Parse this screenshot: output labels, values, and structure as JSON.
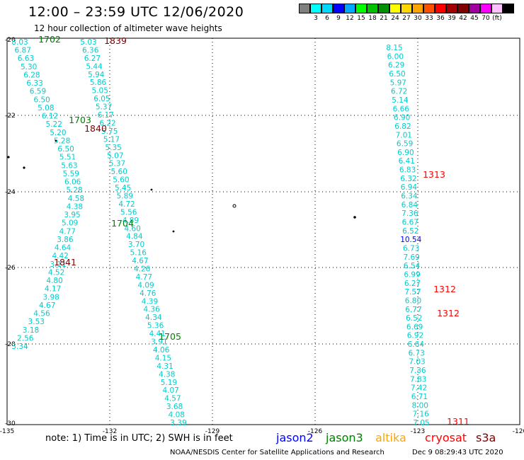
{
  "header": {
    "title": "12:00 – 23:59 UTC 12/06/2020",
    "subtitle": "12 hour collection of altimeter wave heights"
  },
  "legend": {
    "colors": [
      "#808080",
      "#00ffff",
      "#00d7ff",
      "#0000ff",
      "#00a8ff",
      "#00ff00",
      "#00c000",
      "#009000",
      "#ffff00",
      "#ffd700",
      "#ffa500",
      "#ff5000",
      "#ff0000",
      "#a00000",
      "#800000",
      "#a000a0",
      "#ff00ff",
      "#ffc0ff",
      "#000000"
    ],
    "labels": [
      "3",
      "6",
      "9",
      "12",
      "15",
      "18",
      "21",
      "24",
      "27",
      "30",
      "33",
      "36",
      "39",
      "42",
      "45",
      "70",
      "(ft)"
    ]
  },
  "axes": {
    "lon_ticks": [
      "-135",
      "-132",
      "-129",
      "-126",
      "-123",
      "-120"
    ],
    "lat_ticks": [
      "-20",
      "-22",
      "-24",
      "-26",
      "-28",
      "-30"
    ]
  },
  "passes": [
    {
      "label": "1702",
      "color": "#008000"
    },
    {
      "label": "1839",
      "color": "#800000"
    },
    {
      "label": "1703",
      "color": "#008000"
    },
    {
      "label": "1840",
      "color": "#800000"
    },
    {
      "label": "1704",
      "color": "#008000"
    },
    {
      "label": "1841",
      "color": "#800000"
    },
    {
      "label": "1705",
      "color": "#008000"
    },
    {
      "label": "1313",
      "color": "#ff0000"
    },
    {
      "label": "1312",
      "color": "#ff0000"
    },
    {
      "label": "1312",
      "color": "#ff0000"
    },
    {
      "label": "1311",
      "color": "#ff0000"
    }
  ],
  "tracks": [
    {
      "name": "track-a",
      "color": "#00cccc",
      "values": [
        "8.03",
        "6.87",
        "6.63",
        "5.30",
        "6.28",
        "6.33",
        "6.59",
        "6.50",
        "5.08",
        "6.12",
        "5.22",
        "5.20",
        "5.28",
        "6.50",
        "5.51",
        "5.63",
        "5.59",
        "6.06",
        "5.28",
        "4.58",
        "4.38",
        "3.95",
        "5.09",
        "4.77",
        "3.86",
        "4.64",
        "4.42",
        "3.11",
        "4.52",
        "4.80",
        "4.17",
        "3.98",
        "4.67",
        "4.56",
        "3.53",
        "3.18",
        "2.56",
        "3.34"
      ]
    },
    {
      "name": "track-b",
      "color": "#00cccc",
      "values": [
        "5.03",
        "6.36",
        "6.27",
        "5.44",
        "5.94",
        "5.86",
        "5.05",
        "6.05",
        "5.37",
        "6.17",
        "6.22",
        "5.75",
        "5.17",
        "5.35",
        "5.07",
        "5.37",
        "5.60",
        "5.60",
        "5.45",
        "5.89",
        "4.72",
        "5.56",
        "4.89",
        "4.60",
        "4.84",
        "3.70",
        "5.16",
        "4.67",
        "4.26",
        "4.77",
        "4.09",
        "4.76",
        "4.39",
        "4.36",
        "4.34",
        "5.36",
        "4.41",
        "3.91",
        "4.06",
        "4.15",
        "4.31",
        "4.38",
        "5.19",
        "4.07",
        "4.57",
        "3.68",
        "4.08",
        "3.39"
      ]
    },
    {
      "name": "track-c",
      "color": "#00cccc",
      "values": [
        "8.15",
        "6.00",
        "6.29",
        "6.50",
        "5.97",
        "6.72",
        "5.14",
        "6.66",
        "6.90",
        "6.82",
        "7.01",
        "6.59",
        "6.90",
        "6.41",
        "6.83",
        "6.32",
        "6.94",
        "6.34",
        "6.84",
        "7.36",
        "6.67",
        "6.52",
        "10.54",
        "6.73",
        "7.69",
        "6.54",
        "6.99",
        "6.27",
        "7.57",
        "6.80",
        "6.77",
        "6.52",
        "6.69",
        "6.92",
        "6.64",
        "6.73",
        "7.03",
        "7.36",
        "7.83",
        "7.42",
        "6.71",
        "8.00",
        "7.16",
        "7.05"
      ]
    }
  ],
  "footer": {
    "note": "note:  1) Time is in UTC;  2) SWH is in feet",
    "sat1": "jason2",
    "sat1_color": "#0000ff",
    "sat2": "jason3",
    "sat2_color": "#008000",
    "sat3": "altika",
    "sat3_color": "#ffa500",
    "sat4": "cryosat",
    "sat4_color": "#ff0000",
    "sat5": "s3a",
    "sat5_color": "#800000",
    "credit": "NOAA/NESDIS Center for Satellite Applications and Research",
    "stamp": "Dec  9 08:29:43 UTC 2020"
  }
}
